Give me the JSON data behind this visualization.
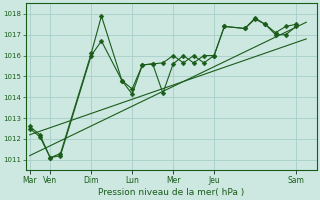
{
  "background_color": "#cce8e0",
  "grid_color": "#a8cec8",
  "line_color": "#1a5c1a",
  "xlabel": "Pression niveau de la mer( hPa )",
  "ylim": [
    1010.5,
    1018.5
  ],
  "yticks": [
    1011,
    1012,
    1013,
    1014,
    1015,
    1016,
    1017,
    1018
  ],
  "day_labels": [
    "Mar",
    "Ven",
    "Dim",
    "Lun",
    "Mer",
    "Jeu",
    "Sam"
  ],
  "day_positions": [
    0,
    1,
    3,
    5,
    7,
    9,
    13
  ],
  "xlim": [
    -0.2,
    14.0
  ],
  "series1_x": [
    0,
    0.5,
    1.0,
    1.5,
    3.0,
    3.5,
    4.5,
    5.0,
    5.5,
    6.0,
    6.5,
    7.0,
    7.5,
    8.0,
    8.5,
    9.0,
    9.5,
    10.5,
    11.0,
    11.5,
    12.0,
    12.5,
    13.0
  ],
  "series1_y": [
    1012.6,
    1012.2,
    1011.1,
    1011.3,
    1016.1,
    1017.9,
    1014.8,
    1014.4,
    1015.55,
    1015.6,
    1014.2,
    1015.6,
    1016.0,
    1015.65,
    1016.0,
    1016.0,
    1017.4,
    1017.3,
    1017.8,
    1017.5,
    1017.0,
    1017.0,
    1017.4
  ],
  "series2_x": [
    0,
    0.5,
    1.0,
    1.5,
    3.0,
    3.5,
    4.5,
    5.0,
    5.5,
    6.0,
    6.5,
    7.0,
    7.5,
    8.0,
    8.5,
    9.0,
    9.5,
    10.5,
    11.0,
    11.5,
    12.0,
    12.5,
    13.0
  ],
  "series2_y": [
    1012.5,
    1012.1,
    1011.1,
    1011.2,
    1016.0,
    1016.7,
    1014.8,
    1014.15,
    1015.55,
    1015.6,
    1015.65,
    1016.0,
    1015.65,
    1016.0,
    1015.65,
    1016.0,
    1017.4,
    1017.3,
    1017.75,
    1017.5,
    1017.1,
    1017.4,
    1017.5
  ],
  "trend1_x": [
    0,
    13.5
  ],
  "trend1_y": [
    1012.2,
    1016.8
  ],
  "trend2_x": [
    0,
    13.5
  ],
  "trend2_y": [
    1011.2,
    1017.6
  ]
}
